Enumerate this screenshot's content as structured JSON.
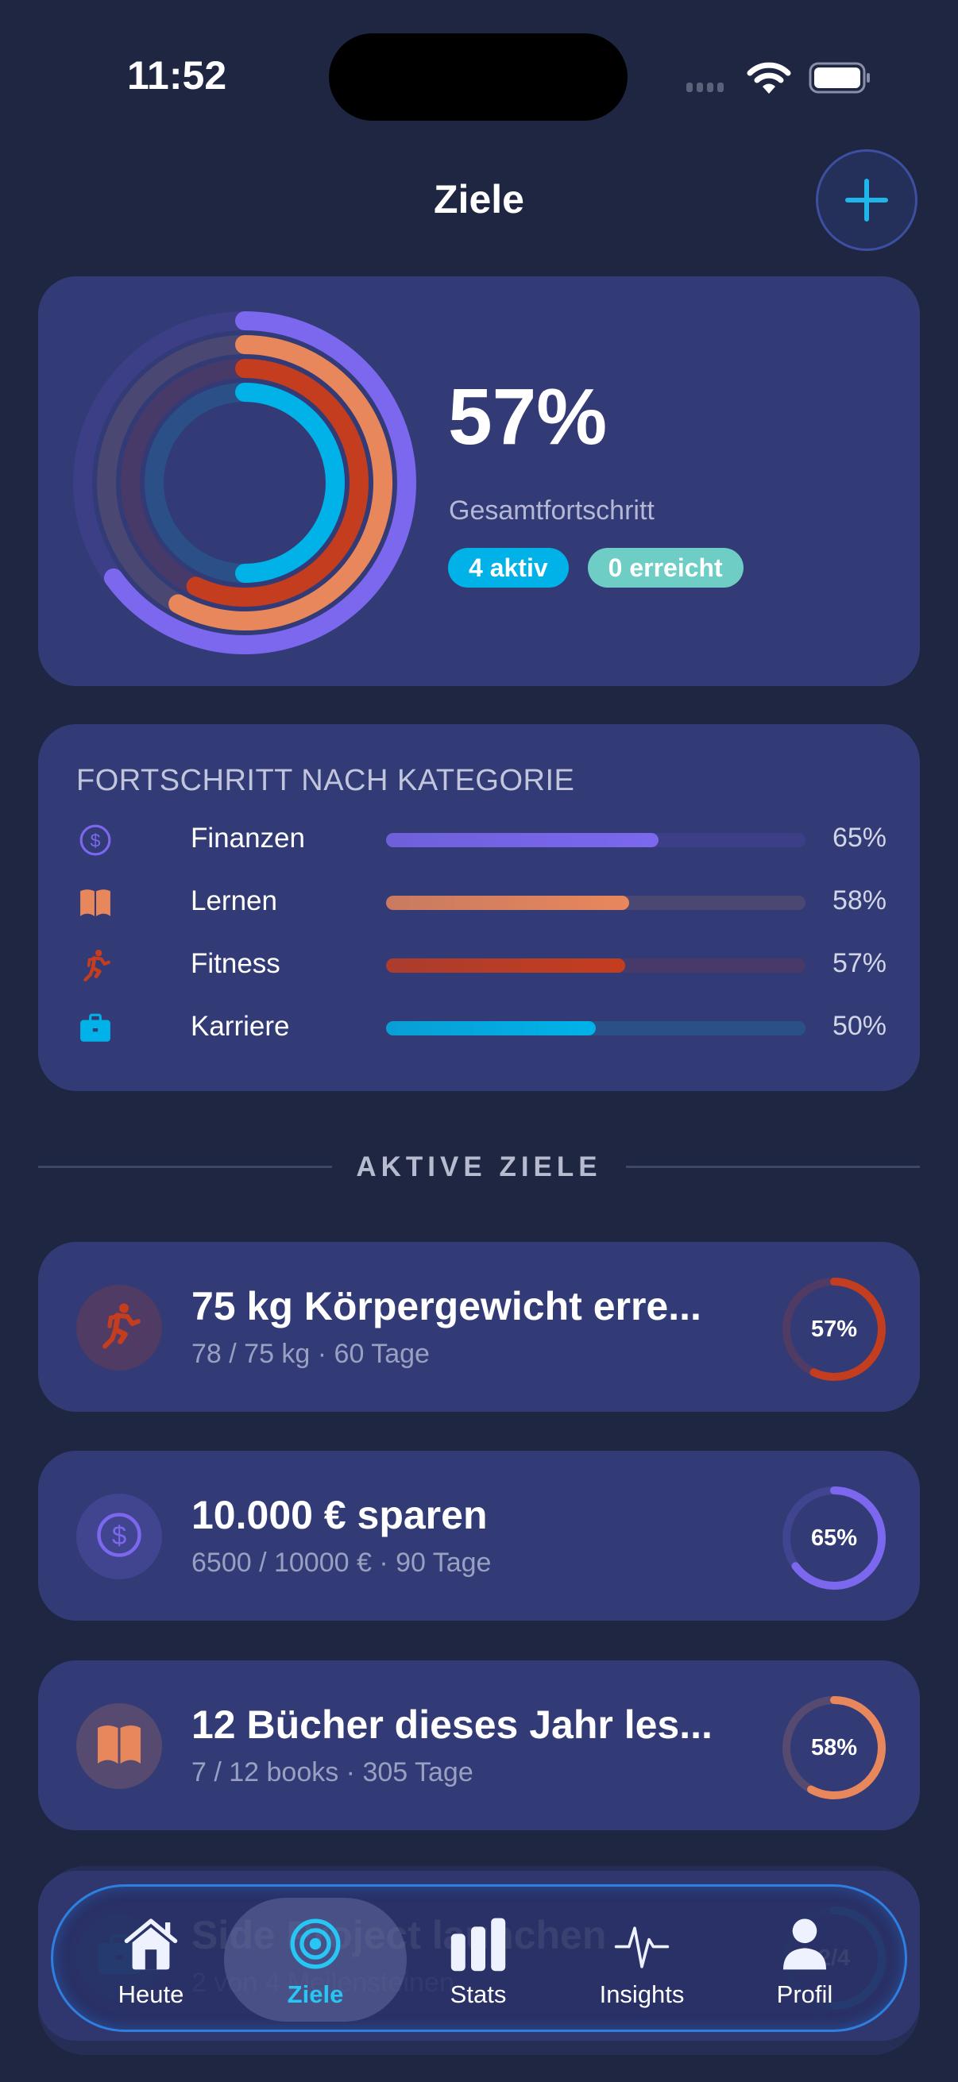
{
  "status_bar": {
    "time": "11:52"
  },
  "header": {
    "title": "Ziele",
    "add_button": "plus-icon"
  },
  "summary": {
    "overall_percent": "57%",
    "overall_label": "Gesamtfortschritt",
    "badge_active": "4 aktiv",
    "badge_reached": "0 erreicht",
    "rings": [
      {
        "category": "Finanzen",
        "percent": 65,
        "color": "#7b68ee",
        "track": "#3c3f86"
      },
      {
        "category": "Lernen",
        "percent": 58,
        "color": "#e8875c",
        "track": "#4a4772"
      },
      {
        "category": "Fitness",
        "percent": 57,
        "color": "#c43d1e",
        "track": "#483a68"
      },
      {
        "category": "Karriere",
        "percent": 50,
        "color": "#00b2e8",
        "track": "#2b5088"
      }
    ]
  },
  "categories": {
    "title": "FORTSCHRITT NACH KATEGORIE",
    "items": [
      {
        "name": "Finanzen",
        "percent": "65%",
        "value": 65,
        "icon": "dollar-circle-icon",
        "color": "#7b68ee",
        "track": "#3c3f86"
      },
      {
        "name": "Lernen",
        "percent": "58%",
        "value": 58,
        "icon": "book-icon",
        "color": "#e8875c",
        "track": "#4a4772"
      },
      {
        "name": "Fitness",
        "percent": "57%",
        "value": 57,
        "icon": "running-icon",
        "color": "#c43d1e",
        "track": "#483a68"
      },
      {
        "name": "Karriere",
        "percent": "50%",
        "value": 50,
        "icon": "briefcase-icon",
        "color": "#00b2e8",
        "track": "#2b5088"
      }
    ]
  },
  "active_goals": {
    "section_label": "AKTIVE ZIELE",
    "items": [
      {
        "title": "75 kg Körpergewicht erre...",
        "subtitle": "78 / 75 kg  ·  60 Tage",
        "percent": "57%",
        "value": 57,
        "icon": "running-icon",
        "color": "#c43d1e"
      },
      {
        "title": "10.000 € sparen",
        "subtitle": "6500 / 10000 €  ·  90 Tage",
        "percent": "65%",
        "value": 65,
        "icon": "dollar-circle-icon",
        "color": "#7b68ee"
      },
      {
        "title": "12 Bücher dieses Jahr les...",
        "subtitle": "7 / 12 books  ·  305 Tage",
        "percent": "58%",
        "value": 58,
        "icon": "book-icon",
        "color": "#e8875c"
      },
      {
        "title": "Side Project launchen",
        "subtitle": "2 von 4 Meilensteinen",
        "percent": "2/4",
        "value": 50,
        "icon": "briefcase-icon",
        "color": "#00b2e8"
      }
    ]
  },
  "tab_bar": {
    "tabs": [
      {
        "label": "Heute",
        "icon": "house-icon",
        "active": false
      },
      {
        "label": "Ziele",
        "icon": "target-icon",
        "active": true
      },
      {
        "label": "Stats",
        "icon": "bar-chart-icon",
        "active": false
      },
      {
        "label": "Insights",
        "icon": "pulse-icon",
        "active": false
      },
      {
        "label": "Profil",
        "icon": "person-icon",
        "active": false
      }
    ]
  },
  "colors": {
    "background": "#1f2642",
    "card": "#323b76",
    "accent": "#00b2e8"
  }
}
